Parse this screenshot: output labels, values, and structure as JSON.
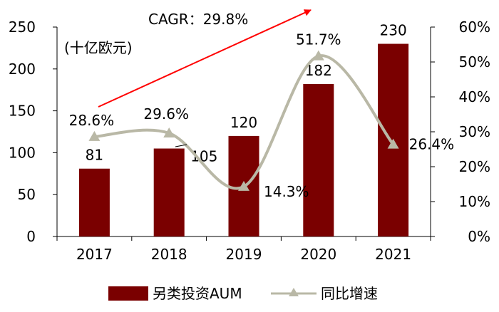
{
  "chart_data": {
    "type": "bar",
    "unit_label": "(十亿欧元)",
    "categories": [
      "2017",
      "2018",
      "2019",
      "2020",
      "2021"
    ],
    "series": [
      {
        "name": "另类投资AUM",
        "type": "bar",
        "axis": "left",
        "color": "#7a0000",
        "values": [
          81,
          105,
          120,
          182,
          230
        ],
        "labels": [
          "81",
          "105",
          "120",
          "182",
          "230"
        ]
      },
      {
        "name": "同比增速",
        "type": "line",
        "axis": "right",
        "color": "#b9b8a6",
        "values": [
          28.6,
          29.6,
          14.3,
          51.7,
          26.4
        ],
        "labels": [
          "28.6%",
          "29.6%",
          "14.3%",
          "51.7%",
          "26.4%"
        ]
      }
    ],
    "y_left": {
      "min": 0,
      "max": 250,
      "ticks": [
        "0",
        "50",
        "100",
        "150",
        "200",
        "250"
      ]
    },
    "y_right": {
      "min": 0,
      "max": 60,
      "ticks": [
        "0%",
        "10%",
        "20%",
        "30%",
        "40%",
        "50%",
        "60%"
      ]
    },
    "annotation": {
      "text": "CAGR：29.8%",
      "arrow_color": "#ff0000"
    },
    "legend": {
      "position": "bottom"
    },
    "grid": false
  }
}
